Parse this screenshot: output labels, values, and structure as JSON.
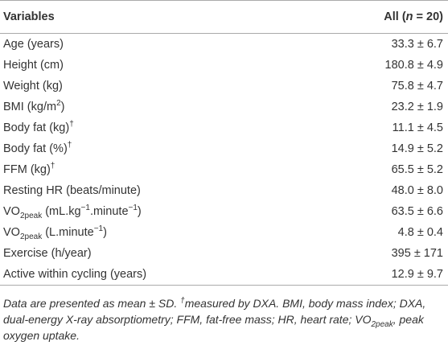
{
  "table": {
    "header": [
      [
        {
          "text": "Variables"
        }
      ],
      [
        {
          "text": "All ("
        },
        {
          "italic": "n"
        },
        {
          "text": " = 20)"
        }
      ]
    ],
    "rows": [
      [
        [
          {
            "text": "Age (years)"
          }
        ],
        "33.3 ± 6.7"
      ],
      [
        [
          {
            "text": "Height (cm)"
          }
        ],
        "180.8 ± 4.9"
      ],
      [
        [
          {
            "text": "Weight (kg)"
          }
        ],
        "75.8 ± 4.7"
      ],
      [
        [
          {
            "text": "BMI (kg/m"
          },
          {
            "sup": "2"
          },
          {
            "text": ")"
          }
        ],
        "23.2 ± 1.9"
      ],
      [
        [
          {
            "text": "Body fat (kg)"
          },
          {
            "sup": "†"
          }
        ],
        "11.1 ± 4.5"
      ],
      [
        [
          {
            "text": "Body fat (%)"
          },
          {
            "sup": "†"
          }
        ],
        "14.9 ± 5.2"
      ],
      [
        [
          {
            "text": "FFM (kg)"
          },
          {
            "sup": "†"
          }
        ],
        "65.5 ± 5.2"
      ],
      [
        [
          {
            "text": "Resting HR (beats/minute)"
          }
        ],
        "48.0 ± 8.0"
      ],
      [
        [
          {
            "text": "VO"
          },
          {
            "sub": "2peak"
          },
          {
            "text": " (mL.kg"
          },
          {
            "sup": "−1"
          },
          {
            "text": ".minute"
          },
          {
            "sup": "−1"
          },
          {
            "text": ")"
          }
        ],
        "63.5 ± 6.6"
      ],
      [
        [
          {
            "text": "VO"
          },
          {
            "sub": "2peak"
          },
          {
            "text": " (L.minute"
          },
          {
            "sup": "−1"
          },
          {
            "text": ")"
          }
        ],
        "4.8 ± 0.4"
      ],
      [
        [
          {
            "text": "Exercise (h/year)"
          }
        ],
        "395 ± 171"
      ],
      [
        [
          {
            "text": "Active within cycling (years)"
          }
        ],
        "12.9 ± 9.7"
      ]
    ],
    "note": [
      {
        "text": "Data are presented as mean ± SD. "
      },
      {
        "sup": "†"
      },
      {
        "text": "measured by DXA. BMI, body mass index; DXA, dual-energy X-ray absorptiometry; FFM, fat-free mass; HR, heart rate; VO"
      },
      {
        "sub": "2peak"
      },
      {
        "text": ", peak oxygen uptake."
      }
    ]
  }
}
